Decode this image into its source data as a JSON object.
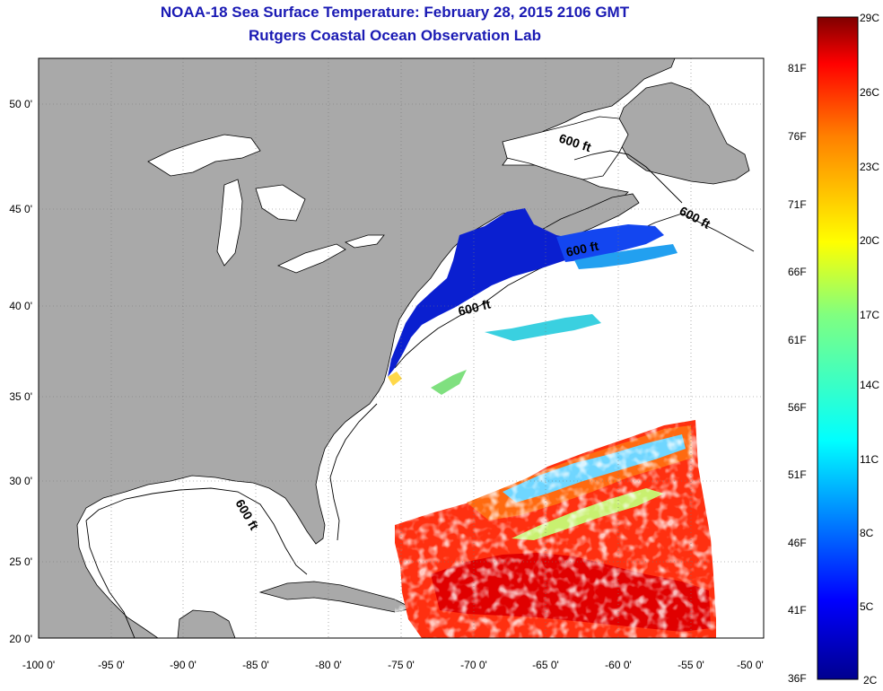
{
  "header": {
    "title": "NOAA-18 Sea Surface Temperature:  February 28, 2015 2106 GMT",
    "subtitle": "Rutgers Coastal Ocean Observation Lab"
  },
  "map": {
    "lat_ticks": [
      "50 0'",
      "45 0'",
      "40 0'",
      "35 0'",
      "30 0'",
      "25 0'",
      "20 0'"
    ],
    "lon_ticks": [
      "-100 0'",
      "-95 0'",
      "-90 0'",
      "-85 0'",
      "-80 0'",
      "-75 0'",
      "-70 0'",
      "-65 0'",
      "-60 0'",
      "-55 0'",
      "-50 0'"
    ],
    "land_color": "#a9a9a9",
    "depth_contour_label": "600 ft"
  },
  "colorbar": {
    "fahrenheit_labels": [
      "81F",
      "76F",
      "71F",
      "66F",
      "61F",
      "56F",
      "51F",
      "46F",
      "41F",
      "36F"
    ],
    "celsius_labels": [
      "29C",
      "26C",
      "23C",
      "20C",
      "17C",
      "14C",
      "11C",
      "8C",
      "5C",
      "2C"
    ],
    "colors": [
      "#7f0000",
      "#ff0000",
      "#ff8000",
      "#ffff00",
      "#80ff80",
      "#00ffff",
      "#0080ff",
      "#0000ff",
      "#00008f"
    ]
  }
}
